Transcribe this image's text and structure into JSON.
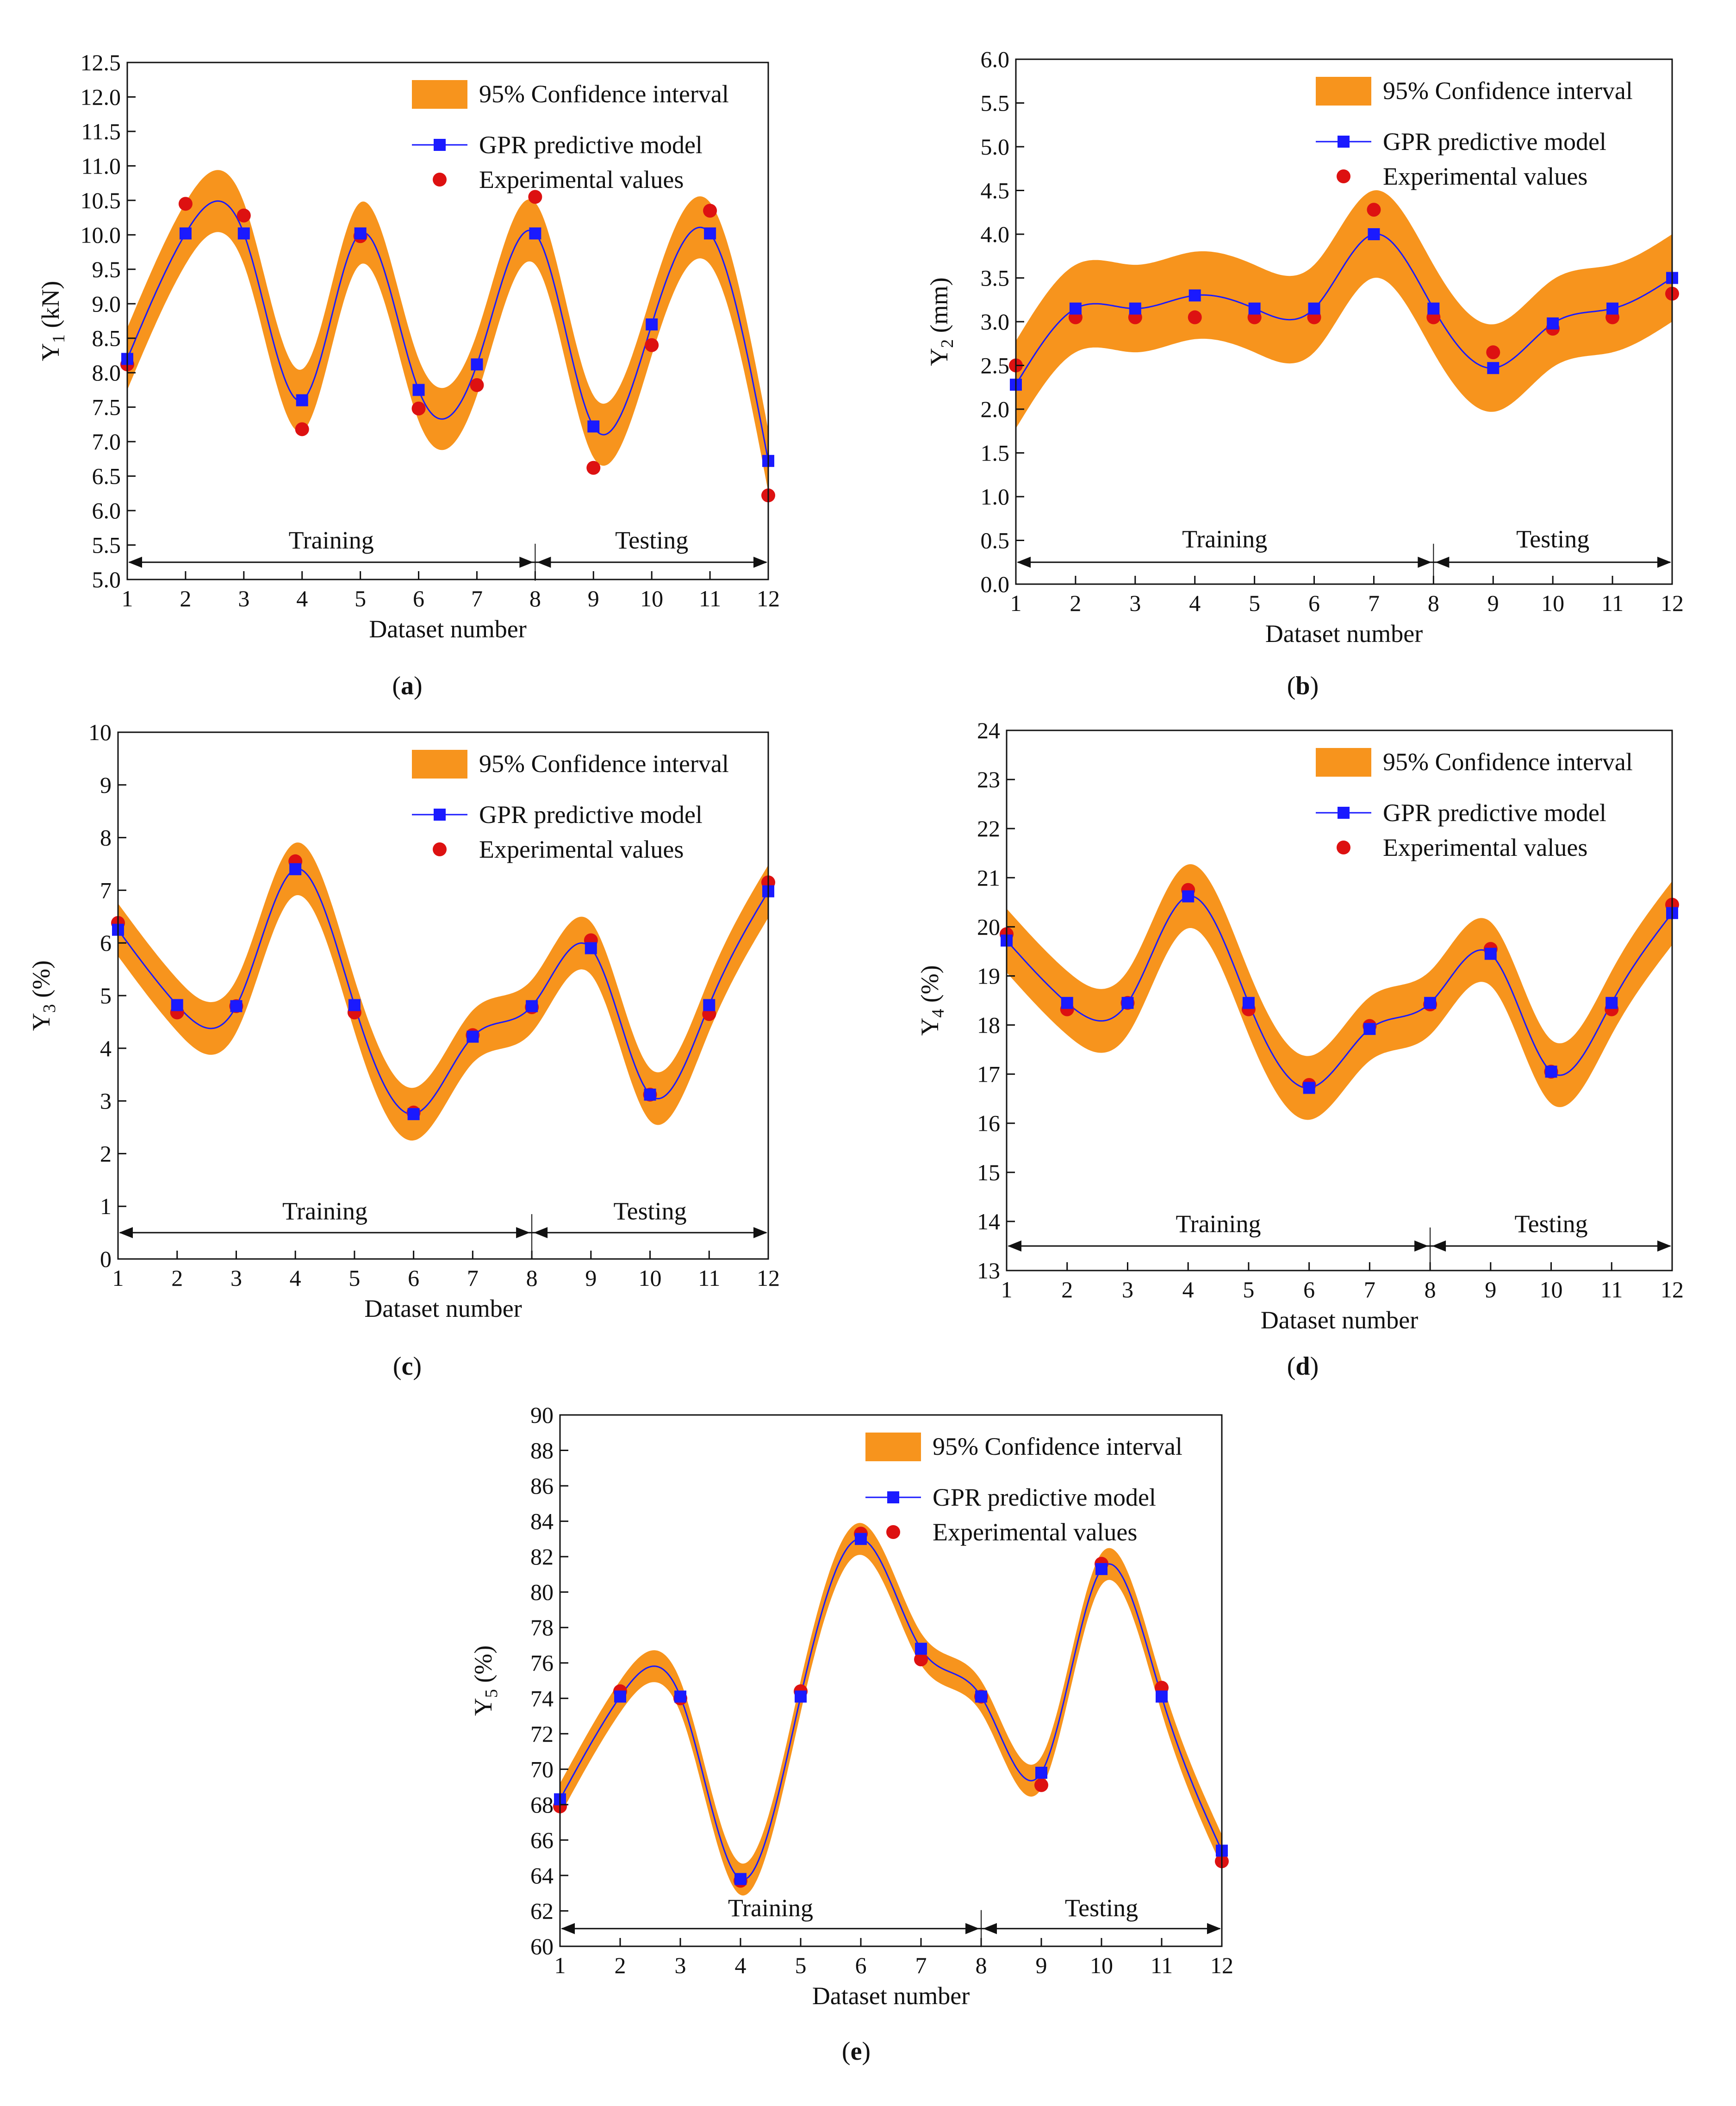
{
  "figure": {
    "captions": [
      "(a)",
      "(b)",
      "(c)",
      "(d)",
      "(e)"
    ],
    "colors": {
      "band": "#F7941D",
      "model": "#1A1AFF",
      "experimental": "#DD1111",
      "axis": "#111111"
    }
  },
  "chart_data": [
    {
      "type": "line",
      "panel": "a",
      "caption": "(a)",
      "ylabel": "Y1 (kN)",
      "ylabel_main": "Y",
      "ylabel_sub": "1",
      "ylabel_unit": " (kN)",
      "xlabel": "Dataset number",
      "xlim": [
        1,
        12
      ],
      "ylim": [
        5.0,
        12.5
      ],
      "yticks": [
        5.0,
        5.5,
        6.0,
        6.5,
        7.0,
        7.5,
        8.0,
        8.5,
        9.0,
        9.5,
        10.0,
        10.5,
        11.0,
        11.5,
        12.0,
        12.5
      ],
      "ytick_labels": [
        "5.0",
        "5.5",
        "6.0",
        "6.5",
        "7.0",
        "7.5",
        "8.0",
        "8.5",
        "9.0",
        "9.5",
        "10.0",
        "10.5",
        "11.0",
        "11.5",
        "12.0",
        "12.5"
      ],
      "xticks": [
        1,
        2,
        3,
        4,
        5,
        6,
        7,
        8,
        9,
        10,
        11,
        12
      ],
      "xtick_labels": [
        "1",
        "2",
        "3",
        "4",
        "5",
        "6",
        "7",
        "8",
        "9",
        "10",
        "11",
        "12"
      ],
      "x": [
        1,
        2,
        3,
        4,
        5,
        6,
        7,
        8,
        9,
        10,
        11,
        12
      ],
      "band_half_width": 0.45,
      "legend": [
        "95% Confidence interval",
        "GPR predictive model",
        "Experimental values"
      ],
      "legend_position": "top-right",
      "regions": {
        "training_label": "Training",
        "testing_label": "Testing",
        "split_x": 8,
        "arrow_y": 5.25,
        "label_y": 5.45
      },
      "series": [
        {
          "name": "GPR predictive model",
          "values": [
            8.2,
            10.02,
            10.02,
            7.6,
            10.02,
            7.75,
            8.12,
            10.02,
            7.22,
            8.7,
            10.02,
            6.72
          ]
        },
        {
          "name": "Experimental values",
          "values": [
            8.12,
            10.45,
            10.28,
            7.18,
            9.98,
            7.48,
            7.82,
            10.55,
            6.62,
            8.4,
            10.35,
            6.22
          ]
        }
      ]
    },
    {
      "type": "line",
      "panel": "b",
      "caption": "(b)",
      "ylabel": "Y2 (mm)",
      "ylabel_main": "Y",
      "ylabel_sub": "2",
      "ylabel_unit": " (mm)",
      "xlabel": "Dataset number",
      "xlim": [
        1,
        12
      ],
      "ylim": [
        0.0,
        6.0
      ],
      "yticks": [
        0.0,
        0.5,
        1.0,
        1.5,
        2.0,
        2.5,
        3.0,
        3.5,
        4.0,
        4.5,
        5.0,
        5.5,
        6.0
      ],
      "ytick_labels": [
        "0.0",
        "0.5",
        "1.0",
        "1.5",
        "2.0",
        "2.5",
        "3.0",
        "3.5",
        "4.0",
        "4.5",
        "5.0",
        "5.5",
        "6.0"
      ],
      "xticks": [
        1,
        2,
        3,
        4,
        5,
        6,
        7,
        8,
        9,
        10,
        11,
        12
      ],
      "xtick_labels": [
        "1",
        "2",
        "3",
        "4",
        "5",
        "6",
        "7",
        "8",
        "9",
        "10",
        "11",
        "12"
      ],
      "x": [
        1,
        2,
        3,
        4,
        5,
        6,
        7,
        8,
        9,
        10,
        11,
        12
      ],
      "band_half_width": 0.5,
      "legend": [
        "95% Confidence interval",
        "GPR predictive model",
        "Experimental values"
      ],
      "legend_position": "top-right",
      "regions": {
        "training_label": "Training",
        "testing_label": "Testing",
        "split_x": 8,
        "arrow_y": 0.25,
        "label_y": 0.42
      },
      "series": [
        {
          "name": "GPR predictive model",
          "values": [
            2.28,
            3.15,
            3.15,
            3.3,
            3.15,
            3.15,
            4.0,
            3.15,
            2.47,
            2.98,
            3.15,
            3.5
          ]
        },
        {
          "name": "Experimental values",
          "values": [
            2.5,
            3.05,
            3.05,
            3.05,
            3.05,
            3.05,
            4.28,
            3.05,
            2.65,
            2.92,
            3.05,
            3.32
          ]
        }
      ]
    },
    {
      "type": "line",
      "panel": "c",
      "caption": "(c)",
      "ylabel": "Y3 (%)",
      "ylabel_main": "Y",
      "ylabel_sub": "3",
      "ylabel_unit": " (%)",
      "xlabel": "Dataset number",
      "xlim": [
        1,
        12
      ],
      "ylim": [
        0,
        10
      ],
      "yticks": [
        0,
        1,
        2,
        3,
        4,
        5,
        6,
        7,
        8,
        9,
        10
      ],
      "ytick_labels": [
        "0",
        "1",
        "2",
        "3",
        "4",
        "5",
        "6",
        "7",
        "8",
        "9",
        "10"
      ],
      "xticks": [
        1,
        2,
        3,
        4,
        5,
        6,
        7,
        8,
        9,
        10,
        11,
        12
      ],
      "xtick_labels": [
        "1",
        "2",
        "3",
        "4",
        "5",
        "6",
        "7",
        "8",
        "9",
        "10",
        "11",
        "12"
      ],
      "x": [
        1,
        2,
        3,
        4,
        5,
        6,
        7,
        8,
        9,
        10,
        11,
        12
      ],
      "band_half_width": 0.5,
      "legend": [
        "95% Confidence interval",
        "GPR predictive model",
        "Experimental values"
      ],
      "legend_position": "top-right",
      "regions": {
        "training_label": "Training",
        "testing_label": "Testing",
        "split_x": 8,
        "arrow_y": 0.5,
        "label_y": 0.75
      },
      "series": [
        {
          "name": "GPR predictive model",
          "values": [
            6.25,
            4.82,
            4.8,
            7.4,
            4.82,
            2.75,
            4.22,
            4.8,
            5.9,
            3.12,
            4.82,
            6.98
          ]
        },
        {
          "name": "Experimental values",
          "values": [
            6.38,
            4.68,
            4.8,
            7.55,
            4.68,
            2.78,
            4.25,
            4.78,
            6.05,
            3.12,
            4.65,
            7.15
          ]
        }
      ]
    },
    {
      "type": "line",
      "panel": "d",
      "caption": "(d)",
      "ylabel": "Y4 (%)",
      "ylabel_main": "Y",
      "ylabel_sub": "4",
      "ylabel_unit": " (%)",
      "xlabel": "Dataset number",
      "xlim": [
        1,
        12
      ],
      "ylim": [
        13,
        24
      ],
      "yticks": [
        13,
        14,
        15,
        16,
        17,
        18,
        19,
        20,
        21,
        22,
        23,
        24
      ],
      "ytick_labels": [
        "13",
        "14",
        "15",
        "16",
        "17",
        "18",
        "19",
        "20",
        "21",
        "22",
        "23",
        "24"
      ],
      "xticks": [
        1,
        2,
        3,
        4,
        5,
        6,
        7,
        8,
        9,
        10,
        11,
        12
      ],
      "xtick_labels": [
        "1",
        "2",
        "3",
        "4",
        "5",
        "6",
        "7",
        "8",
        "9",
        "10",
        "11",
        "12"
      ],
      "x": [
        1,
        2,
        3,
        4,
        5,
        6,
        7,
        8,
        9,
        10,
        11,
        12
      ],
      "band_half_width": 0.65,
      "legend": [
        "95% Confidence interval",
        "GPR predictive model",
        "Experimental values"
      ],
      "legend_position": "top-right",
      "regions": {
        "training_label": "Training",
        "testing_label": "Testing",
        "split_x": 8,
        "arrow_y": 13.5,
        "label_y": 13.78
      },
      "series": [
        {
          "name": "GPR predictive model",
          "values": [
            19.72,
            18.45,
            18.45,
            20.62,
            18.45,
            16.72,
            17.92,
            18.45,
            19.45,
            17.05,
            18.45,
            20.28
          ]
        },
        {
          "name": "Experimental values",
          "values": [
            19.85,
            18.32,
            18.45,
            20.75,
            18.32,
            16.78,
            17.98,
            18.42,
            19.55,
            17.05,
            18.32,
            20.45
          ]
        }
      ]
    },
    {
      "type": "line",
      "panel": "e",
      "caption": "(e)",
      "ylabel": "Y5 (%)",
      "ylabel_main": "Y",
      "ylabel_sub": "5",
      "ylabel_unit": " (%)",
      "xlabel": "Dataset number",
      "xlim": [
        1,
        12
      ],
      "ylim": [
        60,
        90
      ],
      "yticks": [
        60,
        62,
        64,
        66,
        68,
        70,
        72,
        74,
        76,
        78,
        80,
        82,
        84,
        86,
        88,
        90
      ],
      "ytick_labels": [
        "60",
        "62",
        "64",
        "66",
        "68",
        "70",
        "72",
        "74",
        "76",
        "78",
        "80",
        "82",
        "84",
        "86",
        "88",
        "90"
      ],
      "xticks": [
        1,
        2,
        3,
        4,
        5,
        6,
        7,
        8,
        9,
        10,
        11,
        12
      ],
      "xtick_labels": [
        "1",
        "2",
        "3",
        "4",
        "5",
        "6",
        "7",
        "8",
        "9",
        "10",
        "11",
        "12"
      ],
      "x": [
        1,
        2,
        3,
        4,
        5,
        6,
        7,
        8,
        9,
        10,
        11,
        12
      ],
      "band_half_width": 0.9,
      "legend": [
        "95% Confidence interval",
        "GPR predictive model",
        "Experimental values"
      ],
      "legend_position": "top-right",
      "regions": {
        "training_label": "Training",
        "testing_label": "Testing",
        "split_x": 8,
        "arrow_y": 61.0,
        "label_y": 61.7
      },
      "series": [
        {
          "name": "GPR predictive model",
          "values": [
            68.3,
            74.1,
            74.1,
            63.8,
            74.1,
            83.0,
            76.8,
            74.1,
            69.8,
            81.3,
            74.1,
            65.4
          ]
        },
        {
          "name": "Experimental values",
          "values": [
            67.9,
            74.4,
            74.0,
            63.7,
            74.4,
            83.3,
            76.2,
            74.1,
            69.1,
            81.6,
            74.6,
            64.8
          ]
        }
      ]
    }
  ]
}
